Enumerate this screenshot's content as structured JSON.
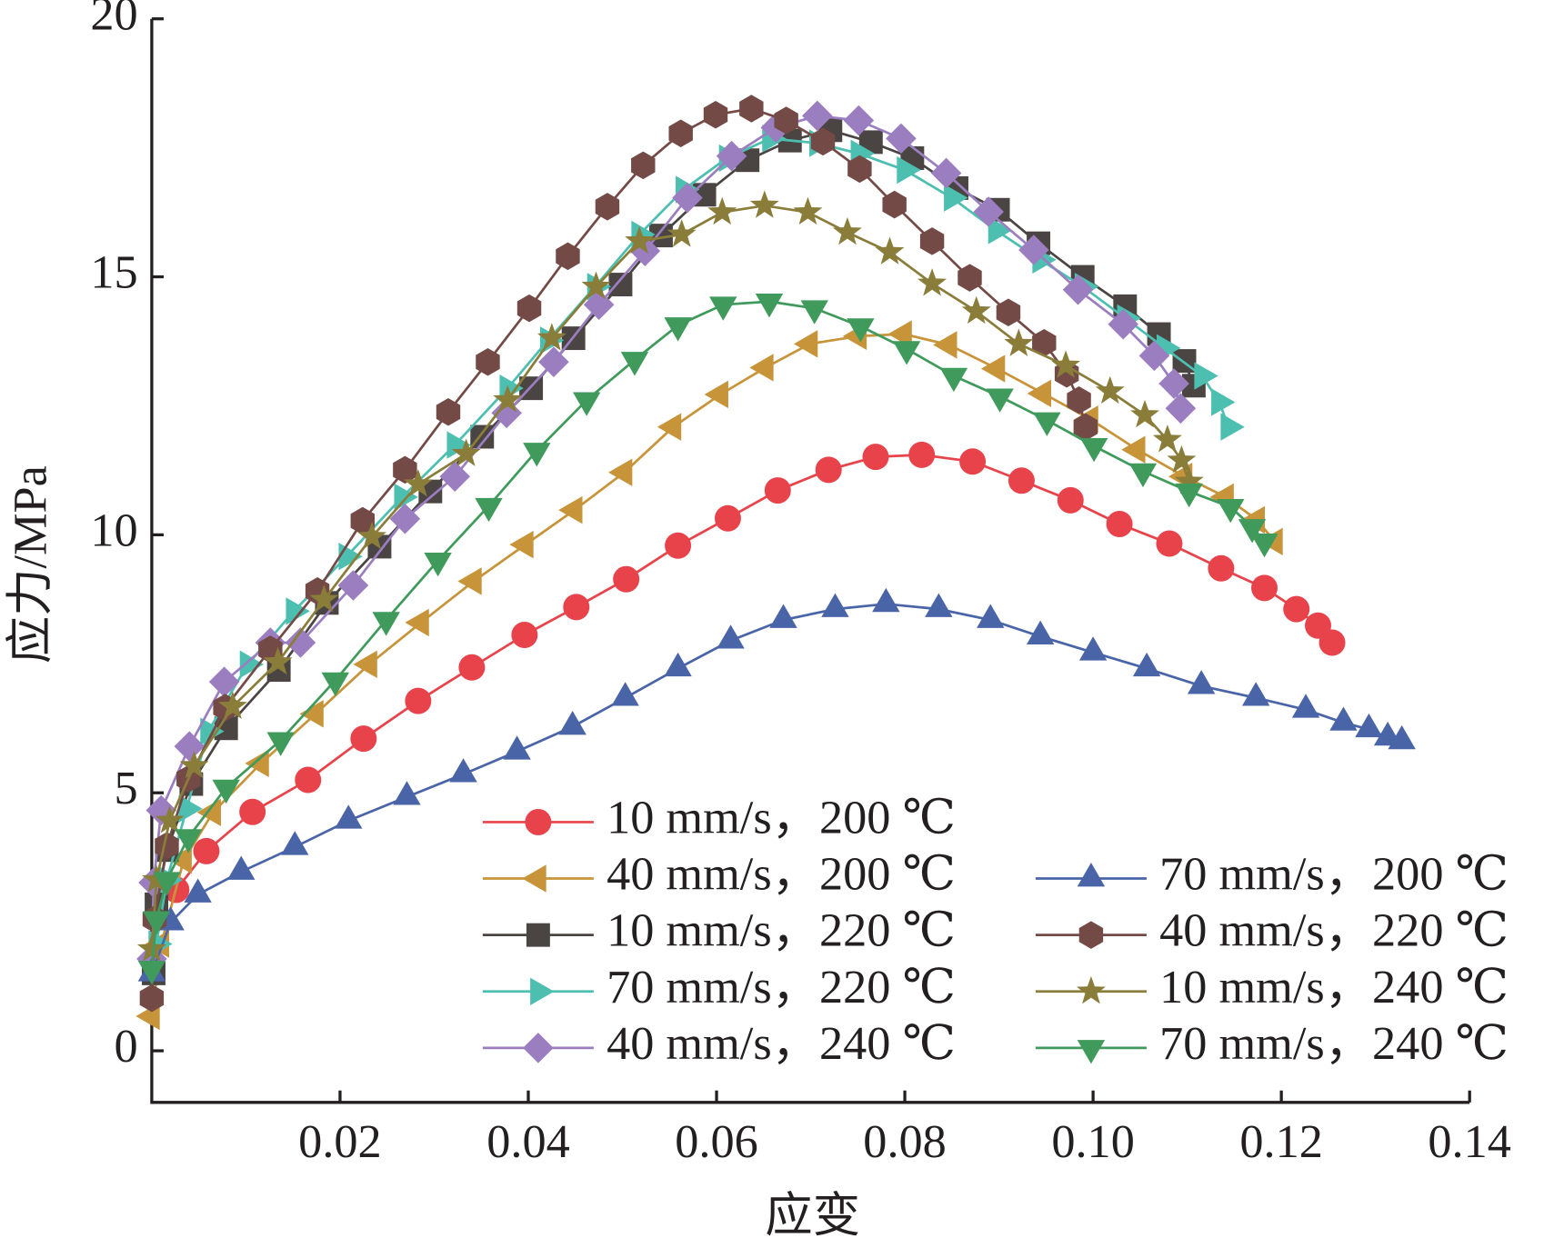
{
  "chart_data": {
    "type": "line",
    "x_label": "应变",
    "y_label": "应力/MPa",
    "xlim": [
      0,
      0.14
    ],
    "ylim": [
      -1,
      20
    ],
    "xticks": [
      0.02,
      0.04,
      0.06,
      {
        "value": 0.08,
        "label": "0.08"
      },
      {
        "value": 0.1,
        "label": "0.10"
      },
      0.12,
      0.14
    ],
    "yticks": [
      0,
      5,
      10,
      15,
      20
    ],
    "legend": "lower right",
    "series": [
      {
        "name": "10 mm/s，200 ℃",
        "color": "#e8434a",
        "marker": "circle",
        "x": [
          0.0026,
          0.0058,
          0.0107,
          0.0166,
          0.0225,
          0.0283,
          0.034,
          0.0396,
          0.0451,
          0.0504,
          0.0559,
          0.0612,
          0.0665,
          0.0719,
          0.0769,
          0.0818,
          0.0872,
          0.0924,
          0.0976,
          0.1028,
          0.1081,
          0.1136,
          0.1182,
          0.1216,
          0.1239,
          0.1254
        ],
        "values": [
          3.12,
          3.87,
          4.63,
          5.25,
          6.05,
          6.78,
          7.43,
          8.06,
          8.6,
          9.14,
          9.79,
          10.32,
          10.86,
          11.26,
          11.51,
          11.55,
          11.42,
          11.05,
          10.67,
          10.21,
          9.83,
          9.35,
          8.97,
          8.56,
          8.24,
          7.91
        ]
      },
      {
        "name": "40 mm/s，200 ℃",
        "color": "#c8943a",
        "marker": "triangle-left",
        "x": [
          0,
          0.001,
          0.0034,
          0.0065,
          0.0116,
          0.0174,
          0.0231,
          0.0286,
          0.0342,
          0.0397,
          0.0449,
          0.0502,
          0.0554,
          0.0604,
          0.0652,
          0.0699,
          0.0751,
          0.0799,
          0.0847,
          0.0898,
          0.0947,
          0.0997,
          0.1047,
          0.1097,
          0.1141,
          0.1174,
          0.1193
        ],
        "values": [
          0.67,
          2.07,
          3.7,
          4.62,
          5.57,
          6.53,
          7.49,
          8.3,
          9.1,
          9.81,
          10.48,
          11.21,
          12.09,
          12.72,
          13.24,
          13.7,
          13.85,
          13.89,
          13.68,
          13.22,
          12.74,
          12.24,
          11.65,
          11.13,
          10.73,
          10.29,
          9.87
        ]
      },
      {
        "name": "10 mm/s，220 ℃",
        "color": "#4a4543",
        "marker": "square",
        "x": [
          0.0002,
          0.0005,
          0.0016,
          0.0042,
          0.0079,
          0.0135,
          0.0186,
          0.0242,
          0.0296,
          0.0351,
          0.0403,
          0.0448,
          0.0498,
          0.0541,
          0.0587,
          0.0633,
          0.0678,
          0.0721,
          0.0764,
          0.0808,
          0.0855,
          0.0899,
          0.0942,
          0.0989,
          0.1034,
          0.107,
          0.1097,
          0.1107
        ],
        "values": [
          1.5,
          2.84,
          3.89,
          5.17,
          6.25,
          7.38,
          8.68,
          9.77,
          10.84,
          11.9,
          12.84,
          13.81,
          14.85,
          15.8,
          16.59,
          17.26,
          17.64,
          17.84,
          17.61,
          17.3,
          16.72,
          16.3,
          15.65,
          15.0,
          14.43,
          13.89,
          13.37,
          12.89
        ]
      },
      {
        "name": "70 mm/s，220 ℃",
        "color": "#4dbfb0",
        "marker": "triangle-right",
        "x": [
          0.0005,
          0.0016,
          0.0037,
          0.006,
          0.0102,
          0.0151,
          0.0207,
          0.0266,
          0.0322,
          0.0378,
          0.0421,
          0.0471,
          0.0518,
          0.0565,
          0.0611,
          0.0657,
          0.0707,
          0.0751,
          0.08,
          0.085,
          0.0897,
          0.0944,
          0.0989,
          0.1034,
          0.1076,
          0.1116,
          0.1134,
          0.1144
        ],
        "values": [
          2.07,
          3.31,
          4.69,
          6.19,
          7.49,
          8.52,
          9.58,
          10.73,
          11.74,
          12.84,
          13.77,
          14.81,
          15.82,
          16.69,
          17.3,
          17.68,
          17.59,
          17.39,
          17.07,
          16.53,
          15.9,
          15.33,
          14.81,
          14.2,
          13.62,
          13.08,
          12.57,
          12.09
        ]
      },
      {
        "name": "40 mm/s，240 ℃",
        "color": "#9b7ec0",
        "marker": "diamond",
        "x": [
          0,
          0.0002,
          0.001,
          0.004,
          0.0077,
          0.0126,
          0.0158,
          0.0214,
          0.0269,
          0.0322,
          0.0377,
          0.0427,
          0.0475,
          0.0524,
          0.0569,
          0.0616,
          0.0663,
          0.0707,
          0.0751,
          0.0796,
          0.0844,
          0.0889,
          0.0937,
          0.0984,
          0.1032,
          0.1065,
          0.1086,
          0.1093
        ],
        "values": [
          1.78,
          3.26,
          4.66,
          5.9,
          7.15,
          7.91,
          7.91,
          9.02,
          10.31,
          11.13,
          12.36,
          13.35,
          14.46,
          15.5,
          16.53,
          17.34,
          17.89,
          18.12,
          18.03,
          17.68,
          17.01,
          16.26,
          15.52,
          14.75,
          14.08,
          13.47,
          12.93,
          12.45
        ]
      },
      {
        "name": "70 mm/s，200 ℃",
        "color": "#4a64a8",
        "marker": "triangle-up",
        "x": [
          0,
          0.002,
          0.0049,
          0.0095,
          0.0152,
          0.0209,
          0.0271,
          0.0331,
          0.0388,
          0.0447,
          0.0503,
          0.0559,
          0.0615,
          0.0671,
          0.0726,
          0.078,
          0.0836,
          0.0891,
          0.0944,
          0.1,
          0.1057,
          0.1115,
          0.1173,
          0.1226,
          0.1266,
          0.1293,
          0.1313,
          0.1328
        ],
        "values": [
          1.5,
          2.49,
          3.03,
          3.47,
          3.95,
          4.46,
          4.92,
          5.36,
          5.8,
          6.28,
          6.84,
          7.41,
          7.95,
          8.35,
          8.56,
          8.66,
          8.56,
          8.35,
          8.03,
          7.72,
          7.41,
          7.07,
          6.84,
          6.61,
          6.36,
          6.23,
          6.07,
          6.0
        ]
      },
      {
        "name": "40 mm/s，220 ℃",
        "color": "#734a45",
        "marker": "hexagon",
        "x": [
          0,
          0.0003,
          0.0016,
          0.0039,
          0.0078,
          0.0126,
          0.0176,
          0.0224,
          0.0269,
          0.0315,
          0.0357,
          0.0401,
          0.0442,
          0.0484,
          0.0522,
          0.0562,
          0.0599,
          0.0637,
          0.0674,
          0.0713,
          0.0752,
          0.0789,
          0.0829,
          0.0869,
          0.091,
          0.0948,
          0.0972,
          0.0985,
          0.0992
        ],
        "values": [
          1.02,
          2.55,
          3.97,
          5.27,
          6.65,
          7.78,
          8.91,
          10.27,
          11.26,
          12.38,
          13.35,
          14.39,
          15.4,
          16.36,
          17.16,
          17.78,
          18.14,
          18.26,
          18.03,
          17.62,
          17.09,
          16.4,
          15.69,
          14.98,
          14.31,
          13.72,
          13.12,
          12.61,
          12.09
        ]
      },
      {
        "name": "10 mm/s，240 ℃",
        "color": "#8a7d3a",
        "marker": "star",
        "x": [
          0,
          0.0005,
          0.0019,
          0.0045,
          0.0086,
          0.0134,
          0.0183,
          0.0234,
          0.0283,
          0.0334,
          0.0378,
          0.0425,
          0.0472,
          0.0518,
          0.0563,
          0.0606,
          0.0651,
          0.0697,
          0.0739,
          0.0784,
          0.0829,
          0.0876,
          0.0921,
          0.0971,
          0.1018,
          0.1055,
          0.1079,
          0.1094,
          0.1102
        ],
        "values": [
          1.97,
          3.31,
          4.46,
          5.52,
          6.67,
          7.53,
          8.74,
          9.96,
          10.98,
          11.57,
          12.61,
          13.81,
          14.81,
          15.69,
          15.82,
          16.25,
          16.38,
          16.25,
          15.86,
          15.48,
          14.87,
          14.33,
          13.7,
          13.28,
          12.78,
          12.32,
          11.84,
          11.44,
          11.03
        ]
      },
      {
        "name": "70 mm/s，240 ℃",
        "color": "#3f9a5c",
        "marker": "triangle-down",
        "x": [
          0,
          0.0005,
          0.0016,
          0.0039,
          0.0079,
          0.0137,
          0.0195,
          0.0249,
          0.0304,
          0.0358,
          0.0409,
          0.0462,
          0.0513,
          0.0559,
          0.0607,
          0.0656,
          0.0704,
          0.0753,
          0.0802,
          0.0852,
          0.0901,
          0.0951,
          0.1001,
          0.1053,
          0.1102,
          0.1146,
          0.1169,
          0.1182
        ],
        "values": [
          1.59,
          2.55,
          3.31,
          4.14,
          5.1,
          6.02,
          7.18,
          8.35,
          9.5,
          10.56,
          11.63,
          12.61,
          13.39,
          14.06,
          14.46,
          14.52,
          14.39,
          14.04,
          13.6,
          13.08,
          12.68,
          12.22,
          11.72,
          11.23,
          10.84,
          10.54,
          10.15,
          9.87
        ]
      }
    ]
  }
}
